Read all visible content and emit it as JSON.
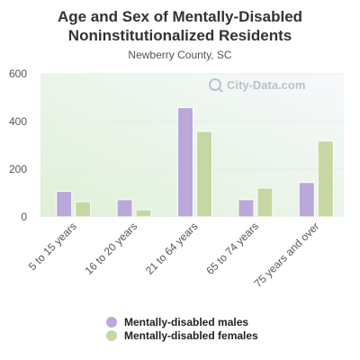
{
  "chart_data": {
    "type": "bar",
    "title": "Age and Sex of Mentally-Disabled\nNoninstitutionalized Residents",
    "subtitle": "Newberry County, SC",
    "watermark": "City-Data.com",
    "categories": [
      "5 to 15 years",
      "16 to 20 years",
      "21 to 64 years",
      "65 to 74 years",
      "75 years and over"
    ],
    "series": [
      {
        "name": "Mentally-disabled males",
        "color": "#b9a8d8",
        "values": [
          107,
          72,
          458,
          72,
          144
        ]
      },
      {
        "name": "Mentally-disabled females",
        "color": "#c5d8a4",
        "values": [
          64,
          30,
          358,
          121,
          318
        ]
      }
    ],
    "yticks": [
      0,
      200,
      400,
      600
    ],
    "ylim": [
      0,
      600
    ],
    "grid": true,
    "legend_position": "bottom"
  }
}
